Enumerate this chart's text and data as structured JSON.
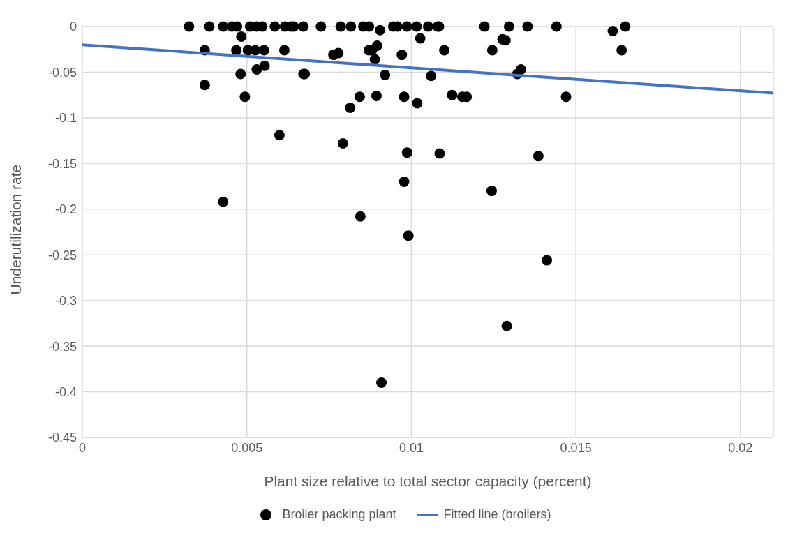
{
  "chart_data": {
    "type": "scatter",
    "xlabel": "Plant size relative to total sector capacity (percent)",
    "ylabel": "Underutilization rate",
    "xlim": [
      0,
      0.021
    ],
    "ylim": [
      -0.45,
      0
    ],
    "xticks": [
      0,
      0.005,
      0.01,
      0.015,
      0.02
    ],
    "yticks": [
      0,
      -0.05,
      -0.1,
      -0.15,
      -0.2,
      -0.25,
      -0.3,
      -0.35,
      -0.4,
      -0.45
    ],
    "grid": true,
    "legend": "bottom",
    "marker": "circle",
    "series": [
      {
        "name": "Broiler packing plant",
        "color": "#000000",
        "x": [
          0.00324,
          0.00386,
          0.00428,
          0.00455,
          0.0047,
          0.0051,
          0.0053,
          0.00547,
          0.00585,
          0.00616,
          0.00634,
          0.00643,
          0.00672,
          0.00725,
          0.00785,
          0.00816,
          0.00854,
          0.00871,
          0.00945,
          0.00958,
          0.00987,
          0.01016,
          0.01051,
          0.0108,
          0.01084,
          0.01222,
          0.01297,
          0.01353,
          0.01441,
          0.0165,
          0.00372,
          0.00372,
          0.00428,
          0.00483,
          0.00468,
          0.00481,
          0.00494,
          0.00503,
          0.00525,
          0.0053,
          0.00552,
          0.00554,
          0.00614,
          0.00599,
          0.00672,
          0.00676,
          0.00763,
          0.00778,
          0.00792,
          0.00814,
          0.00843,
          0.00845,
          0.00871,
          0.0088,
          0.00896,
          0.00889,
          0.00894,
          0.00905,
          0.00909,
          0.0092,
          0.00971,
          0.00978,
          0.00978,
          0.00987,
          0.00991,
          0.01018,
          0.01027,
          0.011,
          0.0106,
          0.01124,
          0.01155,
          0.01168,
          0.01086,
          0.01244,
          0.01246,
          0.01277,
          0.01286,
          0.0129,
          0.01322,
          0.01333,
          0.01386,
          0.01412,
          0.0147,
          0.01612,
          0.01639
        ],
        "values": [
          0,
          0,
          0,
          0,
          0,
          0,
          0,
          0,
          0,
          0,
          0,
          0,
          0,
          0,
          0,
          0,
          0,
          0,
          0,
          0,
          0,
          0,
          0,
          0,
          0,
          0,
          0,
          0,
          0,
          0,
          -0.026,
          -0.064,
          -0.192,
          -0.011,
          -0.026,
          -0.052,
          -0.077,
          -0.026,
          -0.026,
          -0.047,
          -0.026,
          -0.043,
          -0.026,
          -0.119,
          -0.052,
          -0.052,
          -0.031,
          -0.029,
          -0.128,
          -0.089,
          -0.077,
          -0.208,
          -0.026,
          -0.026,
          -0.021,
          -0.036,
          -0.076,
          -0.004,
          -0.39,
          -0.053,
          -0.031,
          -0.077,
          -0.17,
          -0.138,
          -0.229,
          -0.084,
          -0.013,
          -0.026,
          -0.054,
          -0.075,
          -0.077,
          -0.077,
          -0.139,
          -0.18,
          -0.026,
          -0.014,
          -0.015,
          -0.328,
          -0.052,
          -0.047,
          -0.142,
          -0.256,
          -0.077,
          -0.005,
          -0.026
        ]
      },
      {
        "name": "Fitted line (broilers)",
        "type": "line",
        "color": "#4472c4",
        "marker": "none",
        "x": [
          0,
          0.021
        ],
        "values": [
          -0.02,
          -0.073
        ]
      }
    ]
  }
}
